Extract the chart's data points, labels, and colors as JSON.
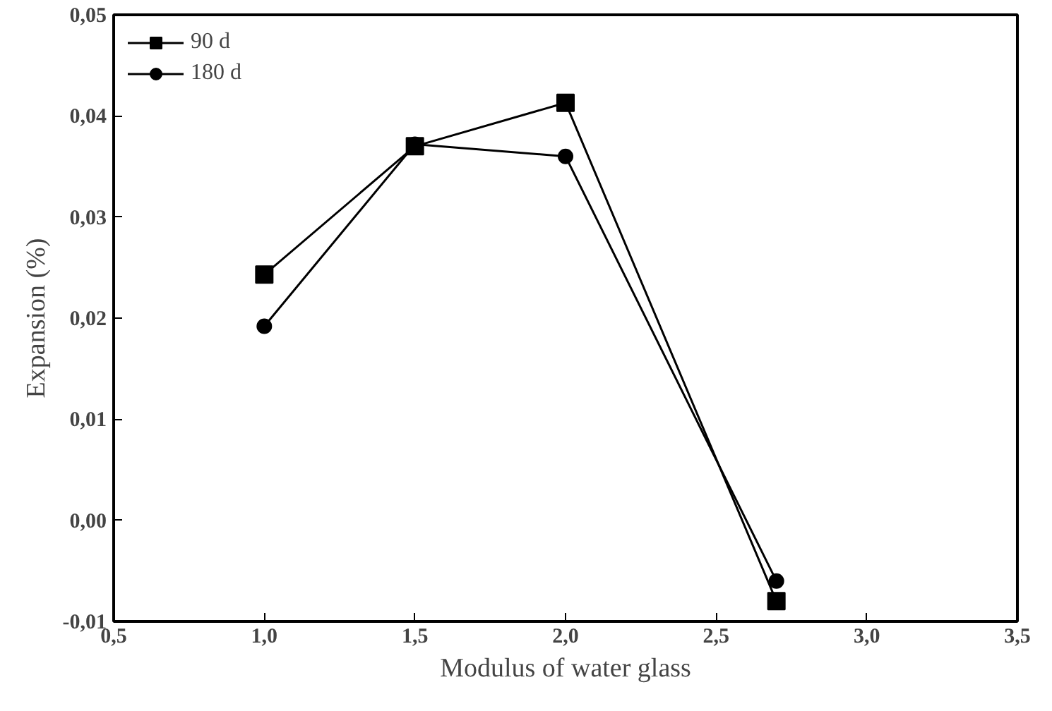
{
  "chart_data": {
    "type": "line",
    "xlabel": "Modulus of water glass",
    "ylabel": "Expansion (%)",
    "x": [
      1.0,
      1.5,
      2.0,
      2.7
    ],
    "series": [
      {
        "name": "90 d",
        "color": "#000000",
        "values": [
          0.0243,
          0.037,
          0.0413,
          -0.008
        ],
        "marker": "square"
      },
      {
        "name": "180 d",
        "color": "#000000",
        "values": [
          0.0192,
          0.0372,
          0.036,
          -0.006
        ],
        "marker": "circle"
      }
    ],
    "xlim": [
      0.5,
      3.5
    ],
    "ylim": [
      -0.01,
      0.05
    ],
    "xticks": [
      {
        "value": 0.5,
        "label": "0,5"
      },
      {
        "value": 1.0,
        "label": "1,0"
      },
      {
        "value": 1.5,
        "label": "1,5"
      },
      {
        "value": 2.0,
        "label": "2,0"
      },
      {
        "value": 2.5,
        "label": "2,5"
      },
      {
        "value": 3.0,
        "label": "3,0"
      },
      {
        "value": 3.5,
        "label": "3,5"
      }
    ],
    "yticks": [
      {
        "value": -0.01,
        "label": "-0,01"
      },
      {
        "value": 0.0,
        "label": "0,00"
      },
      {
        "value": 0.01,
        "label": "0,01"
      },
      {
        "value": 0.02,
        "label": "0,02"
      },
      {
        "value": 0.03,
        "label": "0,03"
      },
      {
        "value": 0.04,
        "label": "0,04"
      },
      {
        "value": 0.05,
        "label": "0,05"
      }
    ],
    "grid": false,
    "legend": "top left",
    "line_style": "solid"
  }
}
